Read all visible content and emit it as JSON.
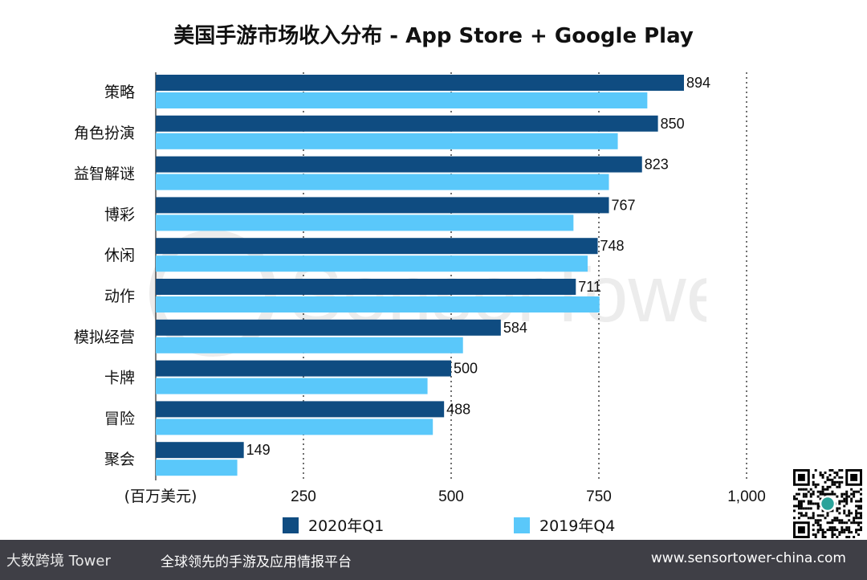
{
  "chart_data": {
    "type": "bar",
    "orientation": "horizontal",
    "title": "美国手游市场收入分布 - App Store + Google Play",
    "xlabel": "(百万美元)",
    "categories": [
      "策略",
      "角色扮演",
      "益智解谜",
      "博彩",
      "休闲",
      "动作",
      "模拟经营",
      "卡牌",
      "冒险",
      "聚会"
    ],
    "series": [
      {
        "name": "2020年Q1",
        "color": "#0f4c81",
        "values": [
          894,
          850,
          823,
          767,
          748,
          711,
          584,
          500,
          488,
          149
        ],
        "show_labels": true
      },
      {
        "name": "2019年Q4",
        "color": "#5ac8fa",
        "values": [
          832,
          782,
          767,
          707,
          731,
          751,
          520,
          460,
          469,
          138
        ],
        "show_labels": false
      }
    ],
    "xlim": [
      0,
      1000
    ],
    "xticks": [
      250,
      500,
      750,
      1000
    ],
    "xtick_labels": [
      "250",
      "500",
      "750",
      "1,000"
    ],
    "grid": "vertical-dotted",
    "legend_position": "bottom"
  },
  "watermark": "SensorTower",
  "footer": {
    "brand": "大数跨境 Tower",
    "slogan": "全球领先的手游及应用情报平台",
    "url": "www.sensortower-china.com"
  }
}
